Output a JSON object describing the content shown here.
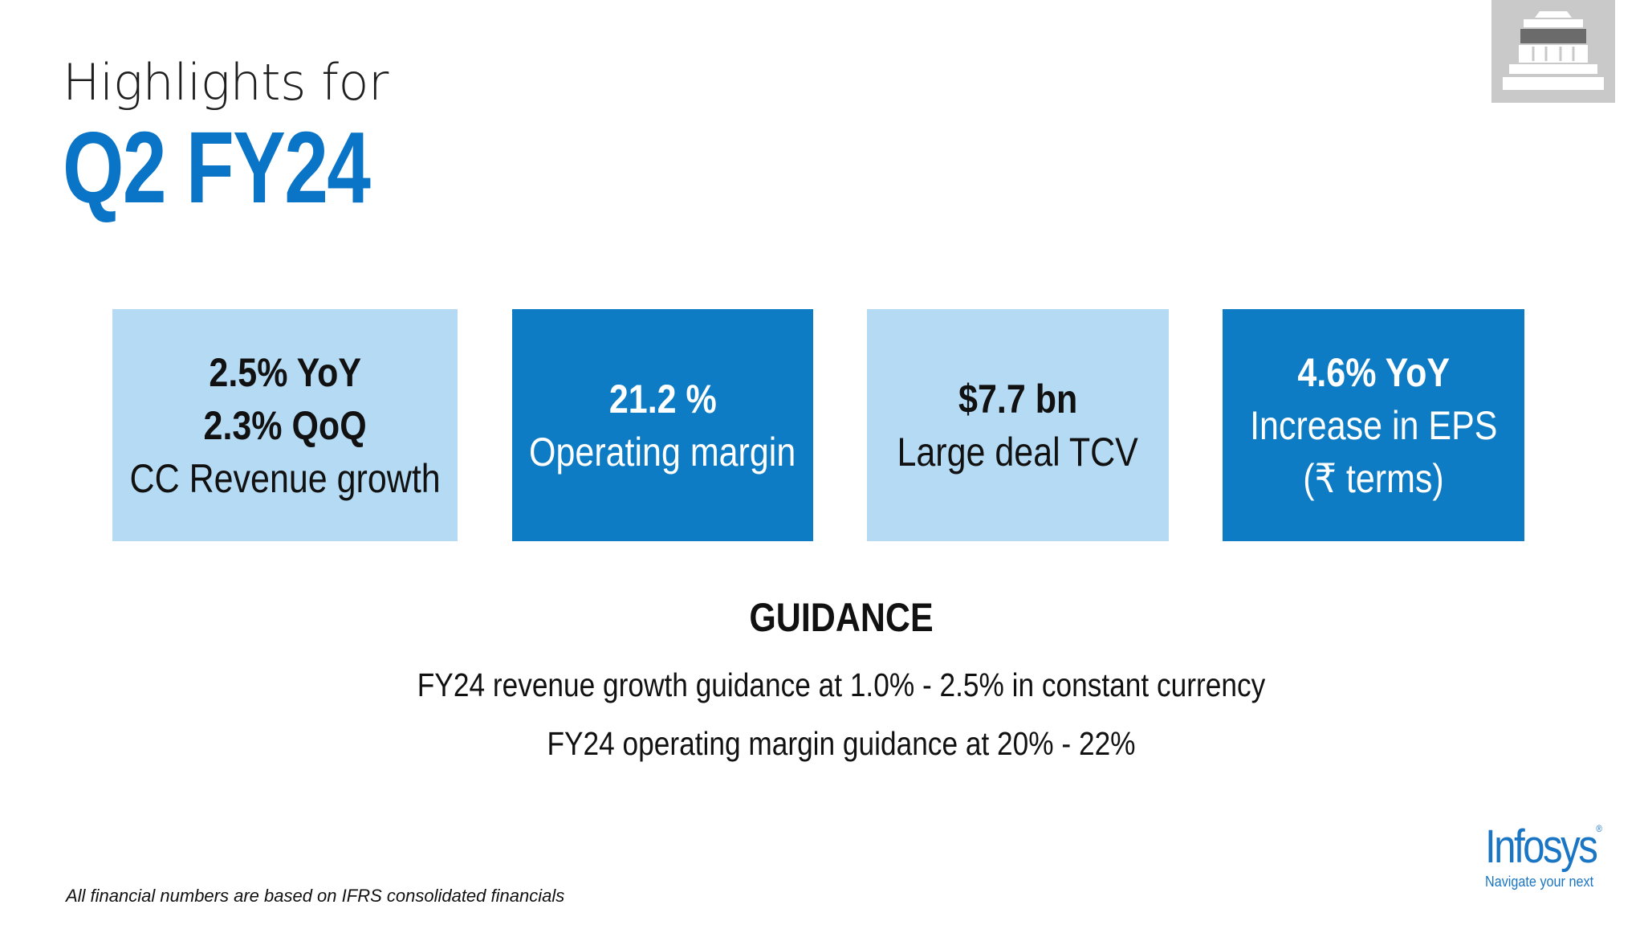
{
  "title": {
    "top": "Highlights for",
    "main": "Q2 FY24"
  },
  "highlights": [
    {
      "lines": [
        "2.5% YoY",
        "2.3% QoQ",
        "CC Revenue growth"
      ],
      "style": "light"
    },
    {
      "lines": [
        "21.2 %",
        "Operating margin"
      ],
      "style": "dark"
    },
    {
      "lines": [
        "$7.7 bn",
        "Large deal TCV"
      ],
      "style": "light"
    },
    {
      "lines": [
        "4.6% YoY",
        "Increase in EPS",
        "(₹ terms)"
      ],
      "style": "dark"
    }
  ],
  "guidance": {
    "title": "GUIDANCE",
    "lines": [
      "FY24 revenue growth guidance at 1.0% - 2.5% in constant currency",
      "FY24 operating margin guidance at 20% - 22%"
    ]
  },
  "footnote": "All financial numbers are based on IFRS consolidated financials",
  "logo": {
    "word": "Infosys",
    "registered": "®",
    "tagline": "Navigate your next"
  },
  "icons": [
    "building-icon"
  ],
  "colors": {
    "brand_blue": "#0a74c6",
    "box_light": "#b5dbf4",
    "box_dark": "#0e7cc4"
  }
}
